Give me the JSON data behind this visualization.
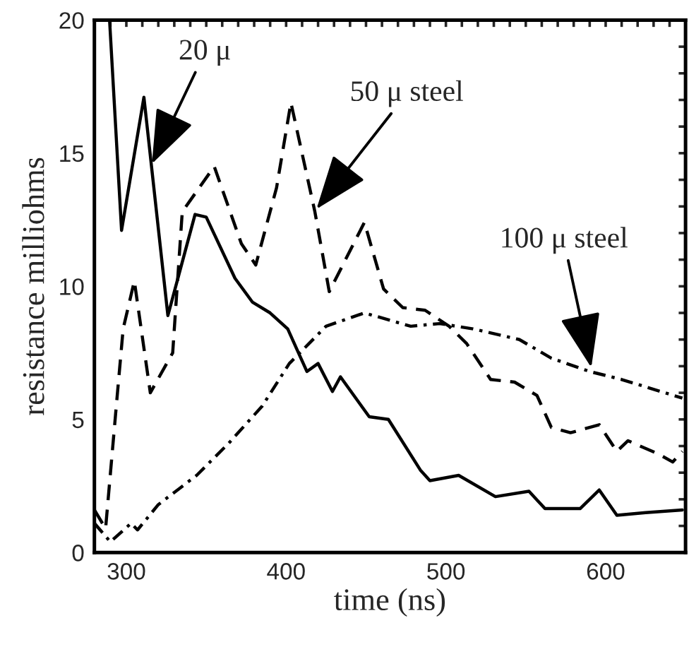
{
  "chart_data": {
    "type": "line",
    "xlabel": "time (ns)",
    "ylabel": "resistance milliohms",
    "xlim": [
      280,
      650
    ],
    "ylim": [
      0,
      20
    ],
    "xticks": [
      {
        "value": 290,
        "label": null
      },
      300,
      {
        "value": 310,
        "label": null
      },
      {
        "value": 320,
        "label": null
      },
      {
        "value": 330,
        "label": null
      },
      {
        "value": 340,
        "label": null
      },
      {
        "value": 350,
        "label": null
      },
      {
        "value": 360,
        "label": null
      },
      {
        "value": 370,
        "label": null
      },
      {
        "value": 380,
        "label": null
      },
      {
        "value": 390,
        "label": null
      },
      400,
      {
        "value": 410,
        "label": null
      },
      {
        "value": 420,
        "label": null
      },
      {
        "value": 430,
        "label": null
      },
      {
        "value": 440,
        "label": null
      },
      {
        "value": 450,
        "label": null
      },
      {
        "value": 460,
        "label": null
      },
      {
        "value": 470,
        "label": null
      },
      {
        "value": 480,
        "label": null
      },
      {
        "value": 490,
        "label": null
      },
      500,
      {
        "value": 510,
        "label": null
      },
      {
        "value": 520,
        "label": null
      },
      {
        "value": 530,
        "label": null
      },
      {
        "value": 540,
        "label": null
      },
      {
        "value": 550,
        "label": null
      },
      {
        "value": 560,
        "label": null
      },
      {
        "value": 570,
        "label": null
      },
      {
        "value": 580,
        "label": null
      },
      {
        "value": 590,
        "label": null
      },
      600,
      {
        "value": 610,
        "label": null
      },
      {
        "value": 620,
        "label": null
      },
      {
        "value": 630,
        "label": null
      },
      {
        "value": 640,
        "label": null
      }
    ],
    "yticks": [
      0,
      {
        "value": 1,
        "label": null
      },
      {
        "value": 2,
        "label": null
      },
      {
        "value": 3,
        "label": null
      },
      {
        "value": 4,
        "label": null
      },
      5,
      {
        "value": 6,
        "label": null
      },
      {
        "value": 7,
        "label": null
      },
      {
        "value": 8,
        "label": null
      },
      {
        "value": 9,
        "label": null
      },
      10,
      {
        "value": 11,
        "label": null
      },
      {
        "value": 12,
        "label": null
      },
      {
        "value": 13,
        "label": null
      },
      {
        "value": 14,
        "label": null
      },
      15,
      {
        "value": 16,
        "label": null
      },
      {
        "value": 17,
        "label": null
      },
      {
        "value": 18,
        "label": null
      },
      {
        "value": 19,
        "label": null
      },
      20
    ],
    "grid": false,
    "legend": false,
    "series": [
      {
        "color": "#000000",
        "line_style": "solid",
        "x": [
          289.5,
          297,
          311,
          326,
          343,
          350,
          368,
          379,
          390,
          401,
          407,
          413,
          420,
          429,
          434,
          452,
          464,
          484,
          490,
          508,
          531,
          552,
          562,
          584,
          596,
          607,
          625,
          648
        ],
        "values": [
          20,
          12.1,
          17.1,
          8.9,
          12.7,
          12.6,
          10.3,
          9.4,
          9.0,
          8.4,
          7.6,
          6.8,
          7.1,
          6.05,
          6.6,
          5.1,
          5.0,
          3.1,
          2.7,
          2.9,
          2.1,
          2.3,
          1.65,
          1.65,
          2.35,
          1.4,
          1.5,
          1.6
        ]
      },
      {
        "color": "#000000",
        "line_style": "dashed",
        "x": [
          280,
          287,
          294,
          298,
          305,
          315,
          329,
          335,
          355,
          372,
          381,
          394,
          403,
          418,
          427,
          449,
          461,
          473,
          487,
          502,
          513,
          528,
          543,
          557,
          566,
          578,
          596,
          607,
          614,
          633,
          642,
          648
        ],
        "values": [
          1.6,
          0.9,
          5.7,
          8.4,
          10.2,
          6.0,
          7.5,
          12.8,
          14.5,
          11.6,
          10.8,
          13.7,
          16.9,
          12.8,
          9.8,
          12.4,
          9.9,
          9.2,
          9.1,
          8.5,
          7.85,
          6.5,
          6.4,
          5.9,
          4.7,
          4.5,
          4.8,
          3.8,
          4.2,
          3.7,
          3.4,
          3.8
        ]
      },
      {
        "color": "#000000",
        "line_style": "dashdot",
        "x": [
          280,
          290,
          303,
          307,
          320,
          344,
          364,
          385,
          402,
          425,
          449,
          478,
          496,
          517,
          546,
          566,
          590,
          610,
          648
        ],
        "values": [
          1.1,
          0.4,
          1.1,
          0.85,
          1.8,
          2.9,
          4.1,
          5.5,
          7.1,
          8.5,
          9.0,
          8.5,
          8.6,
          8.4,
          8.0,
          7.3,
          6.8,
          6.5,
          5.8
        ]
      }
    ],
    "annotations": [
      {
        "text": "20 μ",
        "x": 316,
        "y": 14.6
      },
      {
        "text": "50 μ steel",
        "x": 419,
        "y": 12.9
      },
      {
        "text": "100 μ steel",
        "x": 591,
        "y": 6.95
      }
    ]
  }
}
